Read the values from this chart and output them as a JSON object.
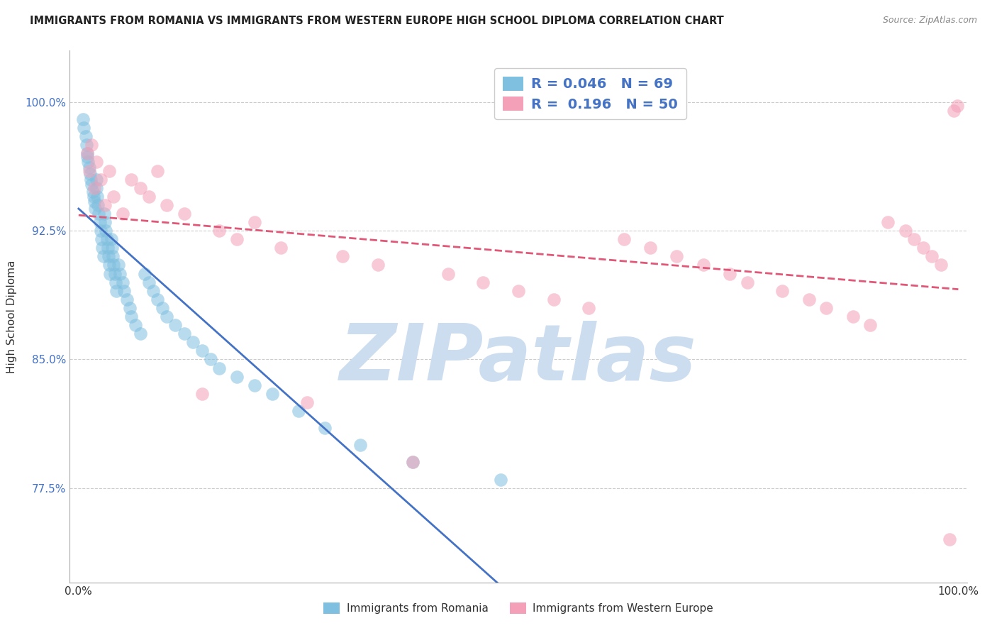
{
  "title": "IMMIGRANTS FROM ROMANIA VS IMMIGRANTS FROM WESTERN EUROPE HIGH SCHOOL DIPLOMA CORRELATION CHART",
  "source": "Source: ZipAtlas.com",
  "ylabel": "High School Diploma",
  "xlabel": "",
  "ytick_labels": [
    "77.5%",
    "85.0%",
    "92.5%",
    "100.0%"
  ],
  "ytick_vals": [
    0.775,
    0.85,
    0.925,
    1.0
  ],
  "xtick_labels": [
    "0.0%",
    "100.0%"
  ],
  "xtick_vals": [
    0.0,
    1.0
  ],
  "legend_r1": "R = 0.046",
  "legend_n1": "N = 69",
  "legend_r2": "R =  0.196",
  "legend_n2": "N = 50",
  "color_blue": "#7fbfdf",
  "color_pink": "#f4a0b8",
  "color_blue_line": "#4472c4",
  "color_pink_line": "#e05878",
  "color_blue_tick": "#4472c4",
  "watermark": "ZIPatlas",
  "watermark_color": "#ccddf0",
  "background_color": "#ffffff",
  "romania_x": [
    0.005,
    0.006,
    0.008,
    0.009,
    0.01,
    0.01,
    0.011,
    0.012,
    0.013,
    0.014,
    0.015,
    0.016,
    0.017,
    0.018,
    0.019,
    0.02,
    0.02,
    0.021,
    0.022,
    0.023,
    0.024,
    0.025,
    0.026,
    0.027,
    0.028,
    0.029,
    0.03,
    0.031,
    0.032,
    0.033,
    0.034,
    0.035,
    0.036,
    0.037,
    0.038,
    0.039,
    0.04,
    0.041,
    0.042,
    0.043,
    0.045,
    0.047,
    0.05,
    0.052,
    0.055,
    0.058,
    0.06,
    0.065,
    0.07,
    0.075,
    0.08,
    0.085,
    0.09,
    0.095,
    0.1,
    0.11,
    0.12,
    0.13,
    0.14,
    0.15,
    0.16,
    0.18,
    0.2,
    0.22,
    0.25,
    0.28,
    0.32,
    0.38,
    0.48
  ],
  "romania_y": [
    0.99,
    0.985,
    0.98,
    0.975,
    0.97,
    0.968,
    0.965,
    0.962,
    0.958,
    0.955,
    0.952,
    0.948,
    0.945,
    0.942,
    0.938,
    0.955,
    0.95,
    0.945,
    0.94,
    0.935,
    0.93,
    0.925,
    0.92,
    0.915,
    0.91,
    0.935,
    0.93,
    0.925,
    0.92,
    0.915,
    0.91,
    0.905,
    0.9,
    0.92,
    0.915,
    0.91,
    0.905,
    0.9,
    0.895,
    0.89,
    0.905,
    0.9,
    0.895,
    0.89,
    0.885,
    0.88,
    0.875,
    0.87,
    0.865,
    0.9,
    0.895,
    0.89,
    0.885,
    0.88,
    0.875,
    0.87,
    0.865,
    0.86,
    0.855,
    0.85,
    0.845,
    0.84,
    0.835,
    0.83,
    0.82,
    0.81,
    0.8,
    0.79,
    0.78
  ],
  "western_x": [
    0.01,
    0.012,
    0.015,
    0.018,
    0.02,
    0.025,
    0.03,
    0.035,
    0.04,
    0.05,
    0.06,
    0.07,
    0.08,
    0.09,
    0.1,
    0.12,
    0.14,
    0.16,
    0.18,
    0.2,
    0.23,
    0.26,
    0.3,
    0.34,
    0.38,
    0.42,
    0.46,
    0.5,
    0.54,
    0.58,
    0.62,
    0.65,
    0.68,
    0.71,
    0.74,
    0.76,
    0.8,
    0.83,
    0.85,
    0.88,
    0.9,
    0.92,
    0.94,
    0.95,
    0.96,
    0.97,
    0.98,
    0.99,
    0.995,
    0.999
  ],
  "western_y": [
    0.97,
    0.96,
    0.975,
    0.95,
    0.965,
    0.955,
    0.94,
    0.96,
    0.945,
    0.935,
    0.955,
    0.95,
    0.945,
    0.96,
    0.94,
    0.935,
    0.83,
    0.925,
    0.92,
    0.93,
    0.915,
    0.825,
    0.91,
    0.905,
    0.79,
    0.9,
    0.895,
    0.89,
    0.885,
    0.88,
    0.92,
    0.915,
    0.91,
    0.905,
    0.9,
    0.895,
    0.89,
    0.885,
    0.88,
    0.875,
    0.87,
    0.93,
    0.925,
    0.92,
    0.915,
    0.91,
    0.905,
    0.745,
    0.995,
    0.998
  ]
}
